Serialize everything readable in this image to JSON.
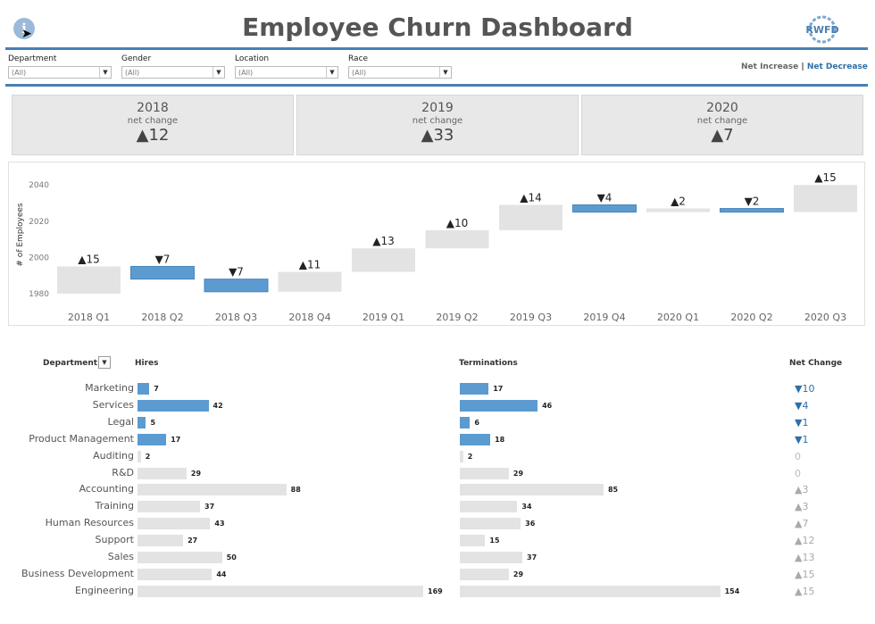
{
  "header": {
    "title": "Employee Churn Dashboard",
    "info_icon": "i",
    "logo_text": "RWFD"
  },
  "filters": [
    {
      "label": "Department",
      "value": "(All)"
    },
    {
      "label": "Gender",
      "value": "(All)"
    },
    {
      "label": "Location",
      "value": "(All)"
    },
    {
      "label": "Race",
      "value": "(All)"
    }
  ],
  "legend": {
    "increase": "Net Increase",
    "separator": "|",
    "decrease": "Net Decrease"
  },
  "kpis": [
    {
      "year": "2018",
      "sub": "net change",
      "value": "▲12"
    },
    {
      "year": "2019",
      "sub": "net change",
      "value": "▲33"
    },
    {
      "year": "2020",
      "sub": "net change",
      "value": "▲7"
    }
  ],
  "colors": {
    "increase": "#e3e3e3",
    "decrease": "#5b9bd0",
    "accent": "#4a7fb3"
  },
  "chart_data": [
    {
      "type": "waterfall",
      "ylabel": "# of Employees",
      "ylim": [
        1975,
        2047
      ],
      "yticks": [
        1980,
        2000,
        2020,
        2040
      ],
      "categories": [
        "2018 Q1",
        "2018 Q2",
        "2018 Q3",
        "2018 Q4",
        "2019 Q1",
        "2019 Q2",
        "2019 Q3",
        "2019 Q4",
        "2020 Q1",
        "2020 Q2",
        "2020 Q3"
      ],
      "start": [
        1980,
        1995,
        1988,
        1981,
        1992,
        2005,
        2015,
        2029,
        2025,
        2027,
        2025
      ],
      "end": [
        1995,
        1988,
        1981,
        1992,
        2005,
        2015,
        2029,
        2025,
        2027,
        2025,
        2040
      ],
      "labels": [
        "▲15",
        "▼7",
        "▼7",
        "▲11",
        "▲13",
        "▲10",
        "▲14",
        "▼4",
        "▲2",
        "▼2",
        "▲15"
      ],
      "direction": [
        "inc",
        "dec",
        "dec",
        "inc",
        "inc",
        "inc",
        "inc",
        "dec",
        "inc",
        "dec",
        "inc"
      ]
    },
    {
      "type": "bar",
      "orientation": "horizontal",
      "dept_header": "Department",
      "hires_header": "Hires",
      "terms_header": "Terminations",
      "net_header": "Net Change",
      "categories": [
        "Marketing",
        "Services",
        "Legal",
        "Product Management",
        "Auditing",
        "R&D",
        "Accounting",
        "Training",
        "Human Resources",
        "Support",
        "Sales",
        "Business Development",
        "Engineering"
      ],
      "hires": [
        7,
        42,
        5,
        17,
        2,
        29,
        88,
        37,
        43,
        27,
        50,
        44,
        169
      ],
      "terminations": [
        17,
        46,
        6,
        18,
        2,
        29,
        85,
        34,
        36,
        15,
        37,
        29,
        154
      ],
      "net_change": [
        "▼10",
        "▼4",
        "▼1",
        "▼1",
        "0",
        "0",
        "▲3",
        "▲3",
        "▲7",
        "▲12",
        "▲13",
        "▲15",
        "▲15"
      ],
      "direction": [
        "dec",
        "dec",
        "dec",
        "dec",
        "zero",
        "zero",
        "inc",
        "inc",
        "inc",
        "inc",
        "inc",
        "inc",
        "inc"
      ]
    }
  ]
}
